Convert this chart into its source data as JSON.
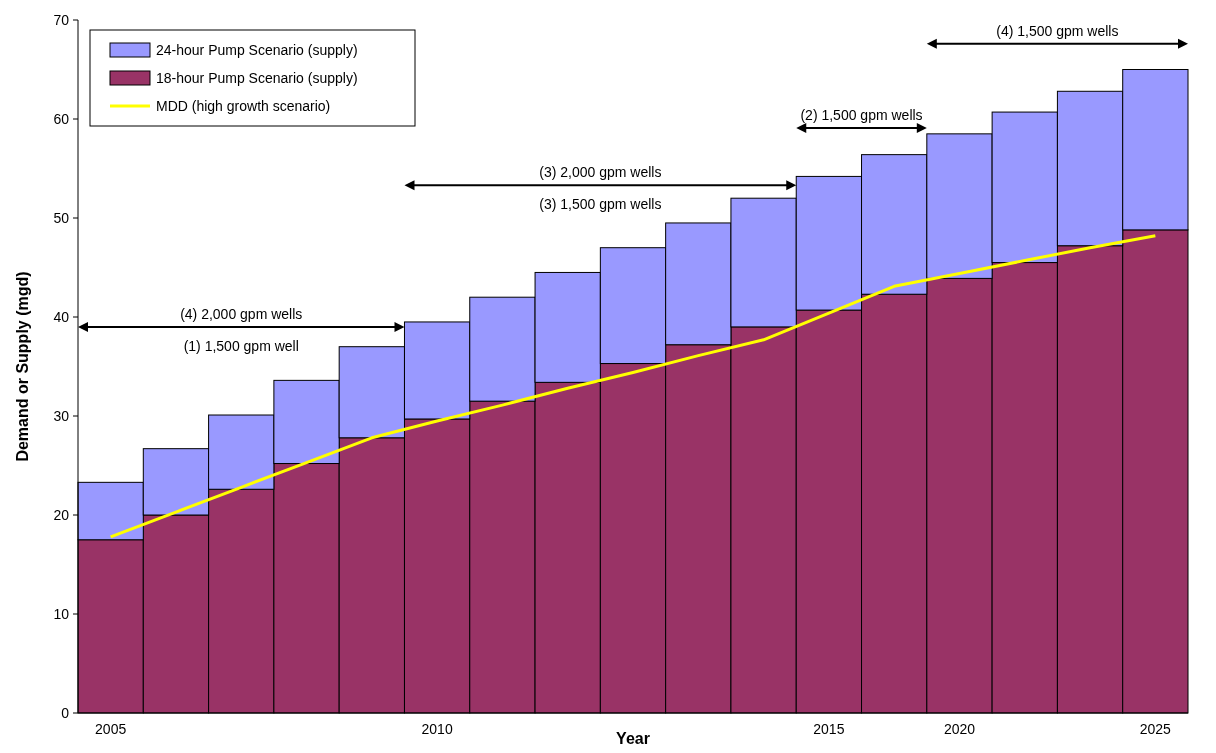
{
  "chart_data": {
    "type": "bar",
    "stacked": true,
    "xlabel": "Year",
    "ylabel": "Demand or Supply (mgd)",
    "categories": [
      "2005",
      null,
      null,
      null,
      null,
      "2010",
      null,
      null,
      null,
      null,
      null,
      "2015",
      null,
      "2020",
      null,
      null,
      "2025"
    ],
    "ylim": [
      0,
      70
    ],
    "yticks": [
      0,
      10,
      20,
      30,
      40,
      50,
      60,
      70
    ],
    "series": [
      {
        "name": "18-hour Pump Scenario (supply)",
        "color": "#993366",
        "values": [
          17.5,
          20,
          22.6,
          25.2,
          27.8,
          29.7,
          31.5,
          33.4,
          35.3,
          37.2,
          39,
          40.7,
          42.3,
          43.9,
          45.5,
          47.2,
          48.8
        ]
      },
      {
        "name": "24-hour Pump Scenario (supply)",
        "color": "#9999ff",
        "values": [
          5.8,
          6.7,
          7.5,
          8.4,
          9.2,
          9.8,
          10.5,
          11.1,
          11.7,
          12.3,
          13,
          13.5,
          14.1,
          14.6,
          15.2,
          15.6,
          16.2
        ]
      },
      {
        "name": "MDD (high growth scenario)",
        "type": "line",
        "color": "#ffff00",
        "values": [
          17.8,
          20.3,
          22.8,
          25.3,
          27.8,
          29.5,
          31.1,
          32.8,
          34.4,
          36.1,
          37.7,
          40.4,
          43.1,
          44.4,
          45.7,
          47,
          48.2
        ]
      }
    ],
    "annotations": [
      "(4) 2,000 gpm wells",
      "(1) 1,500 gpm well",
      "(3) 2,000 gpm wells",
      "(3) 1,500 gpm wells",
      "(2) 1,500 gpm wells",
      "(4) 1,500 gpm wells"
    ],
    "legend": "top left",
    "grid": false
  }
}
